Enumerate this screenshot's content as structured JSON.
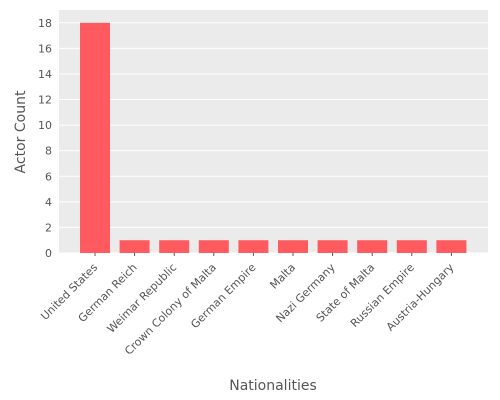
{
  "chart_data": {
    "type": "bar",
    "title": "",
    "xlabel": "Nationalities",
    "ylabel": "Actor Count",
    "categories": [
      "United States",
      "German Reich",
      "Weimar Republic",
      "Crown Colony of Malta",
      "German Empire",
      "Malta",
      "Nazi Germany",
      "State of Malta",
      "Russian Empire",
      "Austria-Hungary"
    ],
    "values": [
      18,
      1,
      1,
      1,
      1,
      1,
      1,
      1,
      1,
      1
    ],
    "ylim": [
      0,
      19
    ],
    "yticks": [
      0,
      2,
      4,
      6,
      8,
      10,
      12,
      14,
      16,
      18
    ],
    "grid": true,
    "legend": "none",
    "colors": {
      "bar": "#ff5a5f",
      "plot_bg": "#ebebeb",
      "grid": "#ffffff",
      "text": "#555555"
    }
  }
}
